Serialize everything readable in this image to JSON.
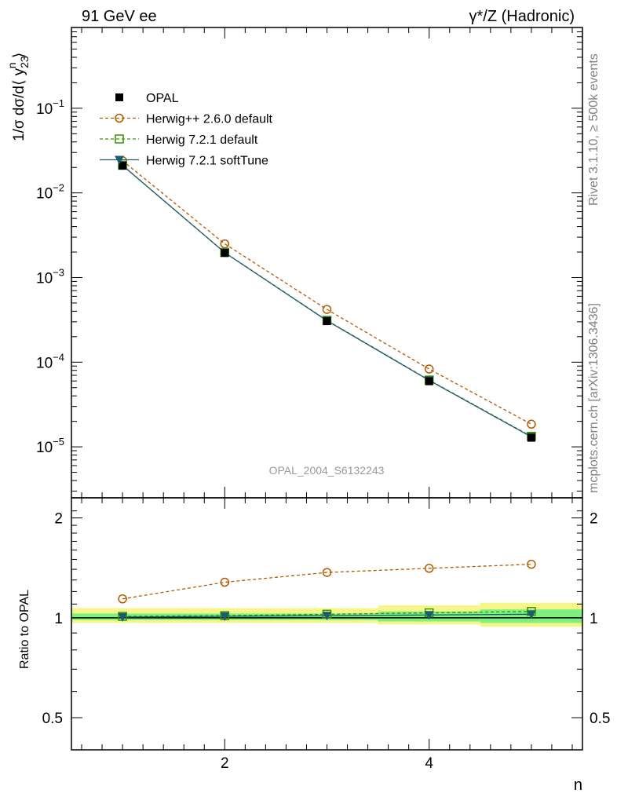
{
  "header": {
    "left_title": "91 GeV ee",
    "right_title": "γ*/Z (Hadronic)"
  },
  "side_labels": {
    "rivet": "Rivet 3.1.10, ≥ 500k events",
    "mcplots": "mcplots.cern.ch [arXiv:1306.3436]"
  },
  "analysis_id": "OPAL_2004_S6132243",
  "colors": {
    "opal": "#000000",
    "herwigpp": "#b35900",
    "herwig721": "#339900",
    "softtune": "#1f5a73",
    "band_inner": "#7ff07f",
    "band_outer": "#f5f58a"
  },
  "chart_data": [
    {
      "type": "line",
      "panel": "main",
      "ylabel": "1/σ dσ/d⟨ y_23^n ⟩",
      "yscale": "log",
      "xlim": [
        0.5,
        5.5
      ],
      "ylim": [
        2.5e-06,
        0.9
      ],
      "y_ticks": [
        {
          "value": 0.1,
          "base": "10",
          "exp": "−1"
        },
        {
          "value": 0.01,
          "base": "10",
          "exp": "−2"
        },
        {
          "value": 0.001,
          "base": "10",
          "exp": "−3"
        },
        {
          "value": 0.0001,
          "base": "10",
          "exp": "−4"
        },
        {
          "value": 1e-05,
          "base": "10",
          "exp": "−5"
        }
      ],
      "legend_position": "top-left",
      "x": [
        1,
        2,
        3,
        4,
        5
      ],
      "series": [
        {
          "name": "OPAL",
          "style": "data",
          "values": [
            0.021,
            0.00195,
            0.000305,
            5.95e-05,
            1.28e-05
          ]
        },
        {
          "name": "Herwig++ 2.6.0 default",
          "style": "dashed-circle",
          "values": [
            0.024,
            0.0025,
            0.00042,
            8.3e-05,
            1.85e-05
          ]
        },
        {
          "name": "Herwig 7.2.1 default",
          "style": "dashed-square",
          "values": [
            0.0212,
            0.00198,
            0.000312,
            6.15e-05,
            1.33e-05
          ]
        },
        {
          "name": "Herwig 7.2.1 softTune",
          "style": "solid-triangle",
          "values": [
            0.0211,
            0.00197,
            0.000309,
            6.1e-05,
            1.31e-05
          ]
        }
      ]
    },
    {
      "type": "line",
      "panel": "ratio",
      "ylabel": "Ratio to OPAL",
      "xlabel": "n",
      "yscale": "log",
      "xlim": [
        0.5,
        5.5
      ],
      "ylim": [
        0.4,
        2.3
      ],
      "x_ticks": [
        2,
        4
      ],
      "y_ticks": [
        {
          "value": 2,
          "label": "2"
        },
        {
          "value": 1,
          "label": "1"
        },
        {
          "value": 0.5,
          "label": "0.5"
        }
      ],
      "x": [
        1,
        2,
        3,
        4,
        5
      ],
      "bands": [
        {
          "x_range": [
            0.5,
            1.5
          ],
          "inner": [
            0.985,
            1.03
          ],
          "outer": [
            0.965,
            1.07
          ]
        },
        {
          "x_range": [
            1.5,
            2.5
          ],
          "inner": [
            0.985,
            1.03
          ],
          "outer": [
            0.965,
            1.07
          ]
        },
        {
          "x_range": [
            2.5,
            3.5
          ],
          "inner": [
            0.985,
            1.03
          ],
          "outer": [
            0.965,
            1.07
          ]
        },
        {
          "x_range": [
            3.5,
            4.5
          ],
          "inner": [
            0.975,
            1.045
          ],
          "outer": [
            0.955,
            1.09
          ]
        },
        {
          "x_range": [
            4.5,
            5.5
          ],
          "inner": [
            0.965,
            1.06
          ],
          "outer": [
            0.94,
            1.11
          ]
        }
      ],
      "series": [
        {
          "name": "Herwig++ 2.6.0 default",
          "style": "dashed-circle",
          "values": [
            1.14,
            1.28,
            1.37,
            1.41,
            1.45
          ]
        },
        {
          "name": "Herwig 7.2.1 default",
          "style": "dashed-square",
          "values": [
            1.01,
            1.015,
            1.025,
            1.035,
            1.045
          ]
        },
        {
          "name": "Herwig 7.2.1 softTune",
          "style": "solid-triangle",
          "values": [
            1.005,
            1.01,
            1.015,
            1.02,
            1.025
          ]
        }
      ]
    }
  ]
}
